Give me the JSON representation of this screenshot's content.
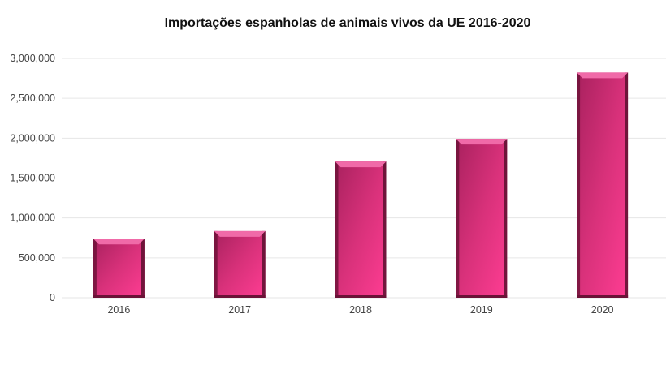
{
  "chart_data": {
    "type": "bar",
    "title": "Importações espanholas de animais vivos da UE 2016-2020",
    "categories": [
      "2016",
      "2017",
      "2018",
      "2019",
      "2020"
    ],
    "values": [
      740000,
      835000,
      1707000,
      1992000,
      2823000
    ],
    "xlabel": "",
    "ylabel": "",
    "ylim": [
      0,
      3000000
    ],
    "yticks": [
      0,
      500000,
      1000000,
      1500000,
      2000000,
      2500000,
      3000000
    ],
    "ytick_labels": [
      "0",
      "500,000",
      "1,000,000",
      "1,500,000",
      "2,000,000",
      "2,500,000",
      "3,000,000"
    ],
    "grid": true,
    "legend": "none",
    "bar_color": "#e0337f"
  }
}
